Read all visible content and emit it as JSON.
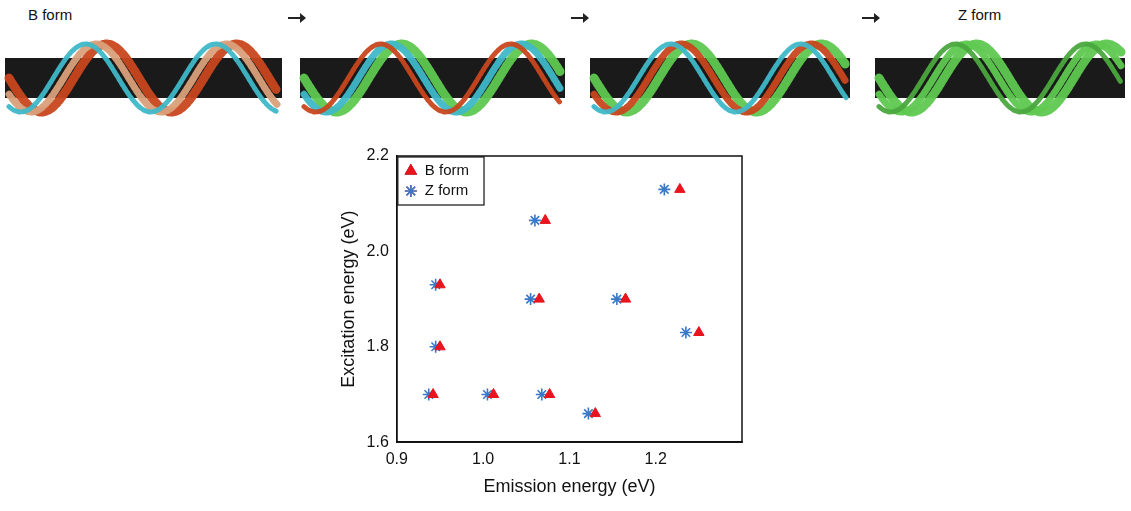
{
  "illustration": {
    "left_label": "B form",
    "right_label": "Z form"
  },
  "chart_data": {
    "type": "scatter",
    "x_label": "Emission energy (eV)",
    "y_label": "Excitation energy (eV)",
    "xlim": [
      0.9,
      1.3
    ],
    "xticks": [
      0.9,
      {
        "value": 1,
        "label": "1.0"
      },
      1.1,
      1.2
    ],
    "ylim": [
      1.6,
      2.2
    ],
    "yticks": [
      1.6,
      1.8,
      {
        "value": 2,
        "label": "2.0"
      },
      2.2
    ],
    "grid": false,
    "legend": "top-left",
    "series": [
      {
        "name": "B form",
        "color": "#e8141e",
        "marker": "triangle",
        "x": [
          0.942,
          0.95,
          0.95,
          1.012,
          1.065,
          1.072,
          1.077,
          1.13,
          1.165,
          1.228,
          1.25
        ],
        "values": [
          1.7,
          1.8,
          1.93,
          1.7,
          1.9,
          2.065,
          1.7,
          1.66,
          1.9,
          2.13,
          1.83
        ]
      },
      {
        "name": "Z form",
        "color": "#3a78c8",
        "marker": "star",
        "x": [
          0.937,
          0.945,
          0.945,
          1.005,
          1.055,
          1.06,
          1.068,
          1.122,
          1.155,
          1.21,
          1.235
        ],
        "values": [
          1.7,
          1.8,
          1.93,
          1.7,
          1.9,
          2.065,
          1.7,
          1.66,
          1.9,
          2.13,
          1.83
        ]
      }
    ]
  }
}
